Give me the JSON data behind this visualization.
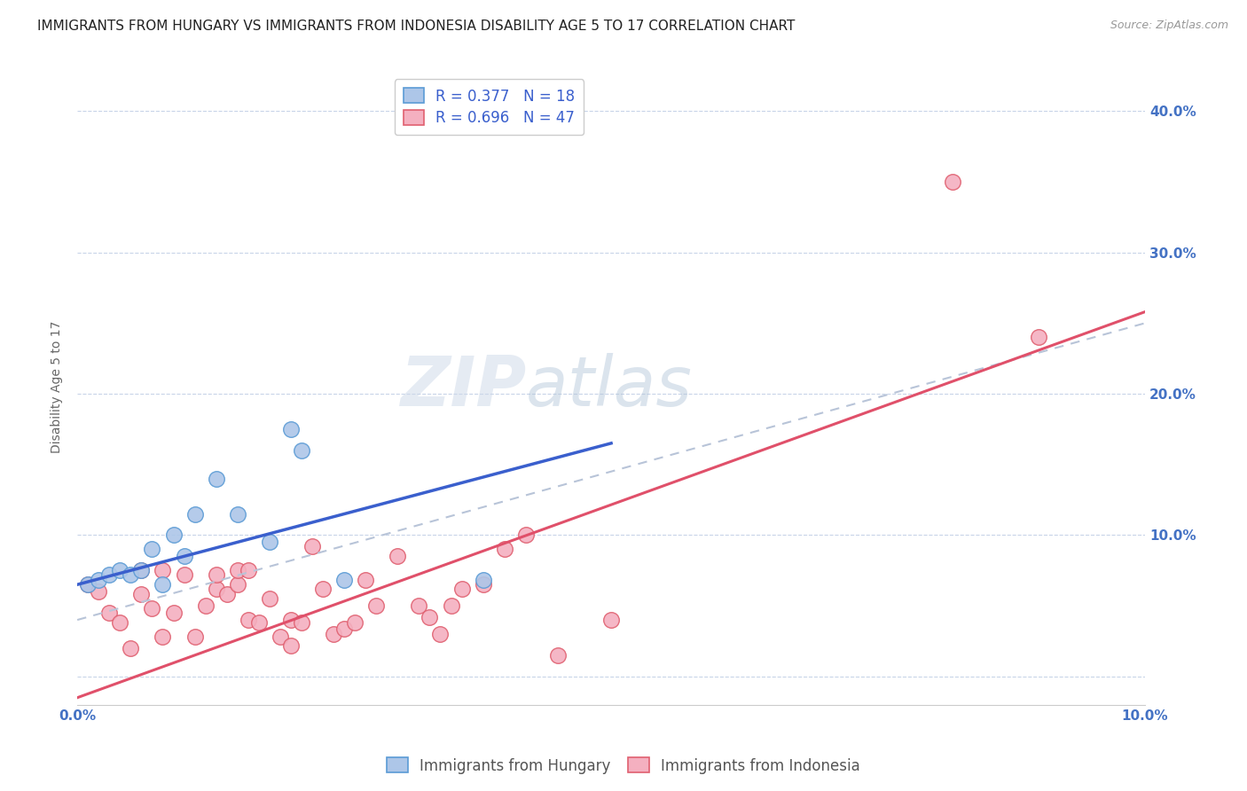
{
  "title": "IMMIGRANTS FROM HUNGARY VS IMMIGRANTS FROM INDONESIA DISABILITY AGE 5 TO 17 CORRELATION CHART",
  "source": "Source: ZipAtlas.com",
  "ylabel": "Disability Age 5 to 17",
  "xlim": [
    0.0,
    0.1
  ],
  "ylim": [
    -0.02,
    0.43
  ],
  "yticks": [
    0.0,
    0.1,
    0.2,
    0.3,
    0.4
  ],
  "ytick_labels_right": [
    "",
    "10.0%",
    "20.0%",
    "30.0%",
    "40.0%"
  ],
  "xticks": [
    0.0,
    0.02,
    0.04,
    0.06,
    0.08,
    0.1
  ],
  "xtick_labels": [
    "0.0%",
    "",
    "",
    "",
    "",
    "10.0%"
  ],
  "hungary_color": "#adc6e8",
  "hungary_edge_color": "#5b9bd5",
  "indonesia_color": "#f4b0c0",
  "indonesia_edge_color": "#e06070",
  "hungary_line_color": "#3a5fcd",
  "indonesia_line_color": "#e0506a",
  "combined_line_color": "#b8c4d8",
  "legend_r_hungary": "0.377",
  "legend_n_hungary": "18",
  "legend_r_indonesia": "0.696",
  "legend_n_indonesia": "47",
  "legend_label_hungary": "Immigrants from Hungary",
  "legend_label_indonesia": "Immigrants from Indonesia",
  "watermark_zip": "ZIP",
  "watermark_atlas": "atlas",
  "hungary_x": [
    0.001,
    0.002,
    0.003,
    0.004,
    0.005,
    0.006,
    0.007,
    0.008,
    0.009,
    0.01,
    0.011,
    0.013,
    0.015,
    0.018,
    0.02,
    0.021,
    0.025,
    0.038
  ],
  "hungary_y": [
    0.065,
    0.068,
    0.072,
    0.075,
    0.072,
    0.075,
    0.09,
    0.065,
    0.1,
    0.085,
    0.115,
    0.14,
    0.115,
    0.095,
    0.175,
    0.16,
    0.068,
    0.068
  ],
  "indonesia_x": [
    0.001,
    0.002,
    0.003,
    0.004,
    0.005,
    0.006,
    0.006,
    0.007,
    0.008,
    0.008,
    0.009,
    0.01,
    0.011,
    0.012,
    0.013,
    0.013,
    0.014,
    0.015,
    0.015,
    0.016,
    0.016,
    0.017,
    0.018,
    0.019,
    0.02,
    0.02,
    0.021,
    0.022,
    0.023,
    0.024,
    0.025,
    0.026,
    0.027,
    0.028,
    0.03,
    0.032,
    0.033,
    0.034,
    0.035,
    0.036,
    0.038,
    0.04,
    0.042,
    0.045,
    0.05,
    0.082,
    0.09
  ],
  "indonesia_y": [
    0.065,
    0.06,
    0.045,
    0.038,
    0.02,
    0.058,
    0.075,
    0.048,
    0.028,
    0.075,
    0.045,
    0.072,
    0.028,
    0.05,
    0.062,
    0.072,
    0.058,
    0.065,
    0.075,
    0.04,
    0.075,
    0.038,
    0.055,
    0.028,
    0.022,
    0.04,
    0.038,
    0.092,
    0.062,
    0.03,
    0.034,
    0.038,
    0.068,
    0.05,
    0.085,
    0.05,
    0.042,
    0.03,
    0.05,
    0.062,
    0.065,
    0.09,
    0.1,
    0.015,
    0.04,
    0.35,
    0.24
  ],
  "hungary_line_x0": 0.0,
  "hungary_line_y0": 0.065,
  "hungary_line_x1": 0.05,
  "hungary_line_y1": 0.165,
  "indonesia_line_x0": 0.0,
  "indonesia_line_y0": -0.015,
  "indonesia_line_x1": 0.1,
  "indonesia_line_y1": 0.258,
  "combined_line_x0": 0.0,
  "combined_line_y0": 0.04,
  "combined_line_x1": 0.1,
  "combined_line_y1": 0.25,
  "marker_size": 160,
  "title_fontsize": 11,
  "axis_label_fontsize": 10,
  "tick_fontsize": 11,
  "legend_fontsize": 12,
  "background_color": "#ffffff",
  "grid_color": "#c8d4e8",
  "title_color": "#222222",
  "tick_color": "#4472c4"
}
